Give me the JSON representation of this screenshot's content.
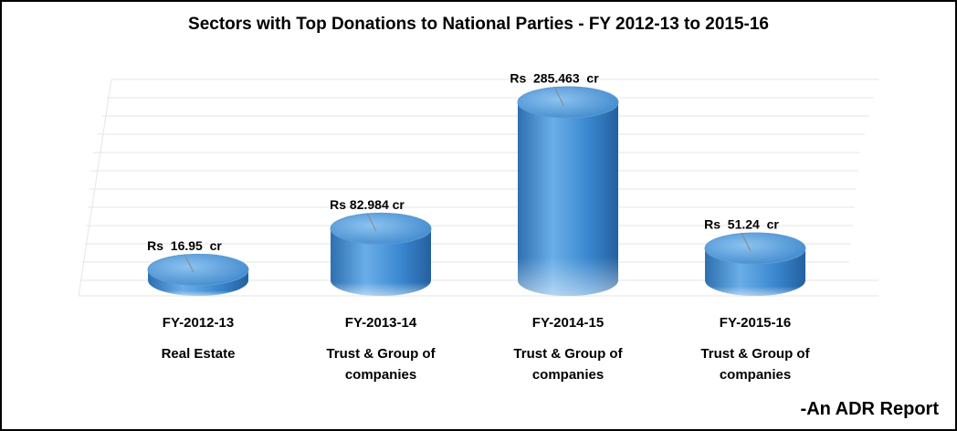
{
  "chart_data": {
    "type": "cylinder",
    "title": "Sectors with Top Donations to National Parties - FY 2012-13 to 2015-16",
    "categories": [
      "FY-2012-13",
      "FY-2013-14",
      "FY-2014-15",
      "FY-2015-16"
    ],
    "sectors": [
      "Real Estate",
      "Trust & Group of companies",
      "Trust & Group of companies",
      "Trust & Group of companies"
    ],
    "values": [
      16.95,
      82.984,
      285.463,
      51.24
    ],
    "value_labels": [
      "Rs  16.95  cr",
      "Rs 82.984 cr",
      "Rs  285.463  cr",
      "Rs  51.24  cr"
    ],
    "color": "#3a87d0",
    "footer": "-An ADR Report"
  }
}
